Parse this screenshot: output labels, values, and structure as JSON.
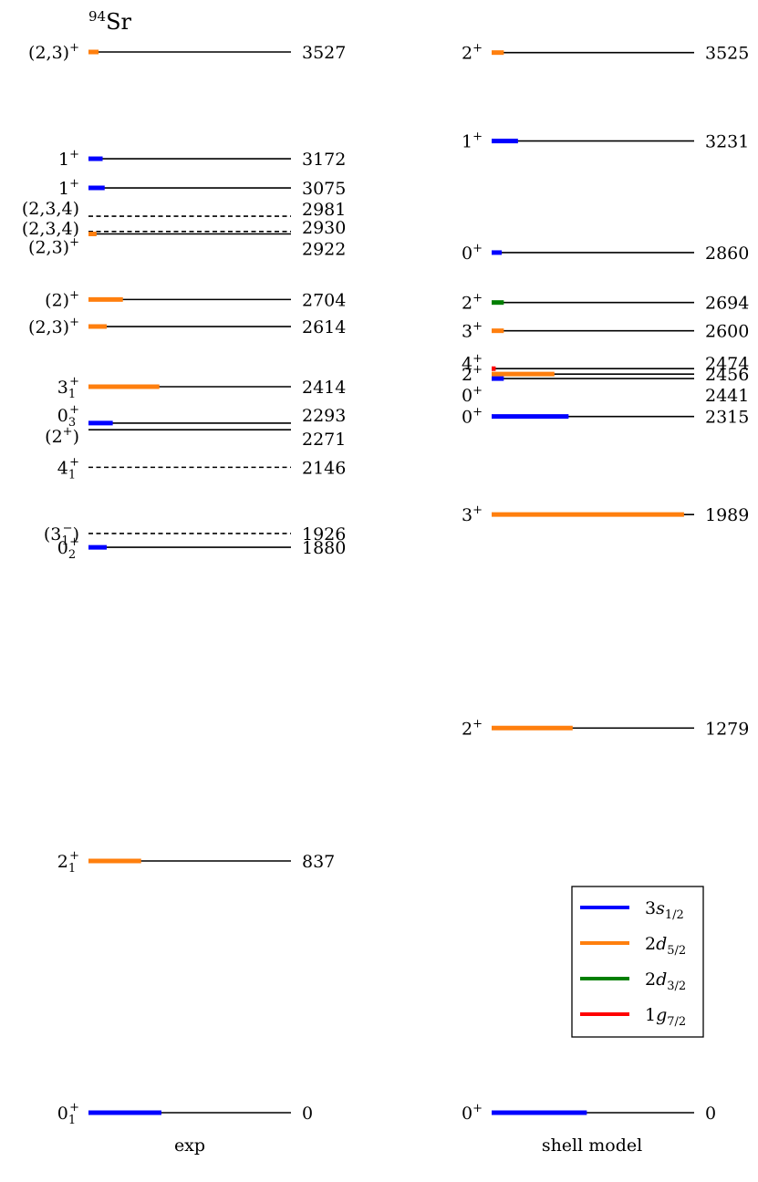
{
  "chart_data": {
    "type": "level-scheme",
    "title": "94Sr",
    "colors": {
      "3s1/2": "#0000ff",
      "2d5/2": "#ff7f0e",
      "2d3/2": "#007f00",
      "1g7/2": "#ff0000",
      "line": "#000000"
    },
    "legend": {
      "placement": "lower-right",
      "entries": [
        {
          "key": "3s1/2",
          "label": "3s1/2"
        },
        {
          "key": "2d5/2",
          "label": "2d5/2"
        },
        {
          "key": "2d3/2",
          "label": "2d3/2"
        },
        {
          "key": "1g7/2",
          "label": "1g7/2"
        }
      ]
    },
    "columns": [
      {
        "name": "exp",
        "levels": [
          {
            "energy": 3527,
            "spin": "(2,3)+",
            "style": "solid",
            "bars": [
              {
                "orbital": "2d5/2",
                "fraction": 0.05
              }
            ]
          },
          {
            "energy": 3172,
            "spin": "1+",
            "style": "solid",
            "bars": [
              {
                "orbital": "3s1/2",
                "fraction": 0.07
              }
            ]
          },
          {
            "energy": 3075,
            "spin": "1+",
            "style": "solid",
            "bars": [
              {
                "orbital": "3s1/2",
                "fraction": 0.08
              }
            ]
          },
          {
            "energy": 2981,
            "spin": "(2,3,4)",
            "style": "dashed",
            "bars": []
          },
          {
            "energy": 2930,
            "spin": "(2,3,4)",
            "style": "dashed",
            "bars": []
          },
          {
            "energy": 2922,
            "spin": "(2,3)+",
            "style": "solid",
            "bars": [
              {
                "orbital": "2d5/2",
                "fraction": 0.04
              }
            ]
          },
          {
            "energy": 2704,
            "spin": "(2)+",
            "style": "solid",
            "bars": [
              {
                "orbital": "2d5/2",
                "fraction": 0.17
              }
            ]
          },
          {
            "energy": 2614,
            "spin": "(2,3)+",
            "style": "solid",
            "bars": [
              {
                "orbital": "2d5/2",
                "fraction": 0.09
              }
            ]
          },
          {
            "energy": 2414,
            "spin": "31+",
            "style": "solid",
            "bars": [
              {
                "orbital": "2d5/2",
                "fraction": 0.35
              }
            ]
          },
          {
            "energy": 2293,
            "spin": "03+",
            "style": "solid",
            "bars": [
              {
                "orbital": "3s1/2",
                "fraction": 0.12
              }
            ]
          },
          {
            "energy": 2271,
            "spin": "(2+)",
            "style": "solid",
            "bars": []
          },
          {
            "energy": 2146,
            "spin": "41+",
            "style": "dashed",
            "bars": []
          },
          {
            "energy": 1926,
            "spin": "(31−)",
            "style": "dashed",
            "bars": []
          },
          {
            "energy": 1880,
            "spin": "02+",
            "style": "solid",
            "bars": [
              {
                "orbital": "3s1/2",
                "fraction": 0.09
              }
            ]
          },
          {
            "energy": 837,
            "spin": "21+",
            "style": "solid",
            "bars": [
              {
                "orbital": "2d5/2",
                "fraction": 0.26
              }
            ]
          },
          {
            "energy": 0,
            "spin": "01+",
            "style": "solid",
            "bars": [
              {
                "orbital": "3s1/2",
                "fraction": 0.36
              }
            ]
          }
        ]
      },
      {
        "name": "shell model",
        "levels": [
          {
            "energy": 3525,
            "spin": "2+",
            "style": "solid",
            "bars": [
              {
                "orbital": "2d5/2",
                "fraction": 0.06
              }
            ]
          },
          {
            "energy": 3231,
            "spin": "1+",
            "style": "solid",
            "bars": [
              {
                "orbital": "3s1/2",
                "fraction": 0.13
              }
            ]
          },
          {
            "energy": 2860,
            "spin": "0+",
            "style": "solid",
            "bars": [
              {
                "orbital": "3s1/2",
                "fraction": 0.05
              }
            ]
          },
          {
            "energy": 2694,
            "spin": "2+",
            "style": "solid",
            "bars": [
              {
                "orbital": "2d3/2",
                "fraction": 0.06
              }
            ]
          },
          {
            "energy": 2600,
            "spin": "3+",
            "style": "solid",
            "bars": [
              {
                "orbital": "2d5/2",
                "fraction": 0.06
              }
            ]
          },
          {
            "energy": 2474,
            "spin": "4+",
            "style": "solid",
            "bars": [
              {
                "orbital": "1g7/2",
                "fraction": 0.02
              }
            ]
          },
          {
            "energy": 2456,
            "spin": "2+",
            "style": "solid",
            "bars": [
              {
                "orbital": "2d5/2",
                "fraction": 0.31
              }
            ]
          },
          {
            "energy": 2441,
            "spin": "0+",
            "style": "solid",
            "bars": [
              {
                "orbital": "3s1/2",
                "fraction": 0.06
              }
            ]
          },
          {
            "energy": 2315,
            "spin": "0+",
            "style": "solid",
            "bars": [
              {
                "orbital": "3s1/2",
                "fraction": 0.38
              }
            ]
          },
          {
            "energy": 1989,
            "spin": "3+",
            "style": "solid",
            "bars": [
              {
                "orbital": "2d5/2",
                "fraction": 0.95
              }
            ]
          },
          {
            "energy": 1279,
            "spin": "2+",
            "style": "solid",
            "bars": [
              {
                "orbital": "2d5/2",
                "fraction": 0.4
              }
            ]
          },
          {
            "energy": 0,
            "spin": "0+",
            "style": "solid",
            "bars": [
              {
                "orbital": "3s1/2",
                "fraction": 0.47
              }
            ]
          }
        ]
      }
    ]
  }
}
